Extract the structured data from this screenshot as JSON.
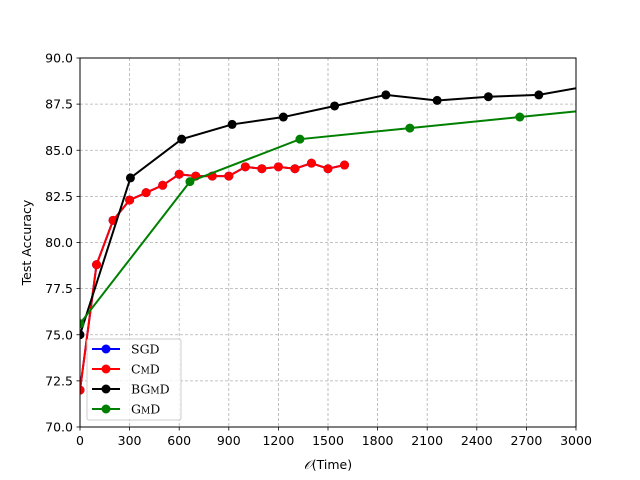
{
  "chart_data": {
    "type": "line",
    "title": "",
    "xlabel": "$\\mathcal{O}$(Time)",
    "xlabel_prefix": "𝒪",
    "xlabel_suffix": "(Time)",
    "ylabel": "Test Accuracy",
    "xlim": [
      0,
      3000
    ],
    "ylim": [
      70,
      90
    ],
    "xticks": [
      0,
      300,
      600,
      900,
      1200,
      1500,
      1800,
      2100,
      2400,
      2700,
      3000
    ],
    "yticks": [
      70.0,
      72.5,
      75.0,
      77.5,
      80.0,
      82.5,
      85.0,
      87.5,
      90.0
    ],
    "xtick_labels": [
      "0",
      "300",
      "600",
      "900",
      "1200",
      "1500",
      "1800",
      "2100",
      "2400",
      "2700",
      "3000"
    ],
    "ytick_labels": [
      "70.0",
      "72.5",
      "75.0",
      "77.5",
      "80.0",
      "82.5",
      "85.0",
      "87.5",
      "90.0"
    ],
    "grid": true,
    "legend_placement": "lower-left",
    "series": [
      {
        "name": "SGD",
        "color": "#0000ff",
        "x": [
          0,
          100,
          200,
          300,
          400,
          500,
          600,
          700,
          800,
          900,
          1000,
          1100,
          1200,
          1300,
          1400,
          1500,
          1600
        ],
        "y": [
          72.0,
          78.8,
          81.2,
          82.3,
          82.7,
          83.1,
          83.7,
          83.6,
          83.6,
          83.6,
          84.1,
          84.0,
          84.1,
          84.0,
          84.3,
          84.0,
          84.2
        ]
      },
      {
        "name": "CmD",
        "color": "#ff0000",
        "x": [
          0,
          100,
          200,
          300,
          400,
          500,
          600,
          700,
          800,
          900,
          1000,
          1100,
          1200,
          1300,
          1400,
          1500,
          1600
        ],
        "y": [
          72.0,
          78.8,
          81.2,
          82.3,
          82.7,
          83.1,
          83.7,
          83.6,
          83.6,
          83.6,
          84.1,
          84.0,
          84.1,
          84.0,
          84.3,
          84.0,
          84.2
        ]
      },
      {
        "name": "BGmD",
        "color": "#000000",
        "x": [
          0,
          305,
          615,
          920,
          1230,
          1540,
          1850,
          2160,
          2470,
          2775,
          3085
        ],
        "y": [
          75.0,
          83.5,
          85.6,
          86.4,
          86.8,
          87.4,
          88.0,
          87.7,
          87.9,
          88.0,
          88.5
        ]
      },
      {
        "name": "GmD",
        "color": "#008000",
        "x": [
          0,
          665,
          1330,
          1995,
          2660,
          3325
        ],
        "y": [
          75.6,
          83.3,
          85.6,
          86.2,
          86.8,
          87.4
        ]
      }
    ]
  }
}
